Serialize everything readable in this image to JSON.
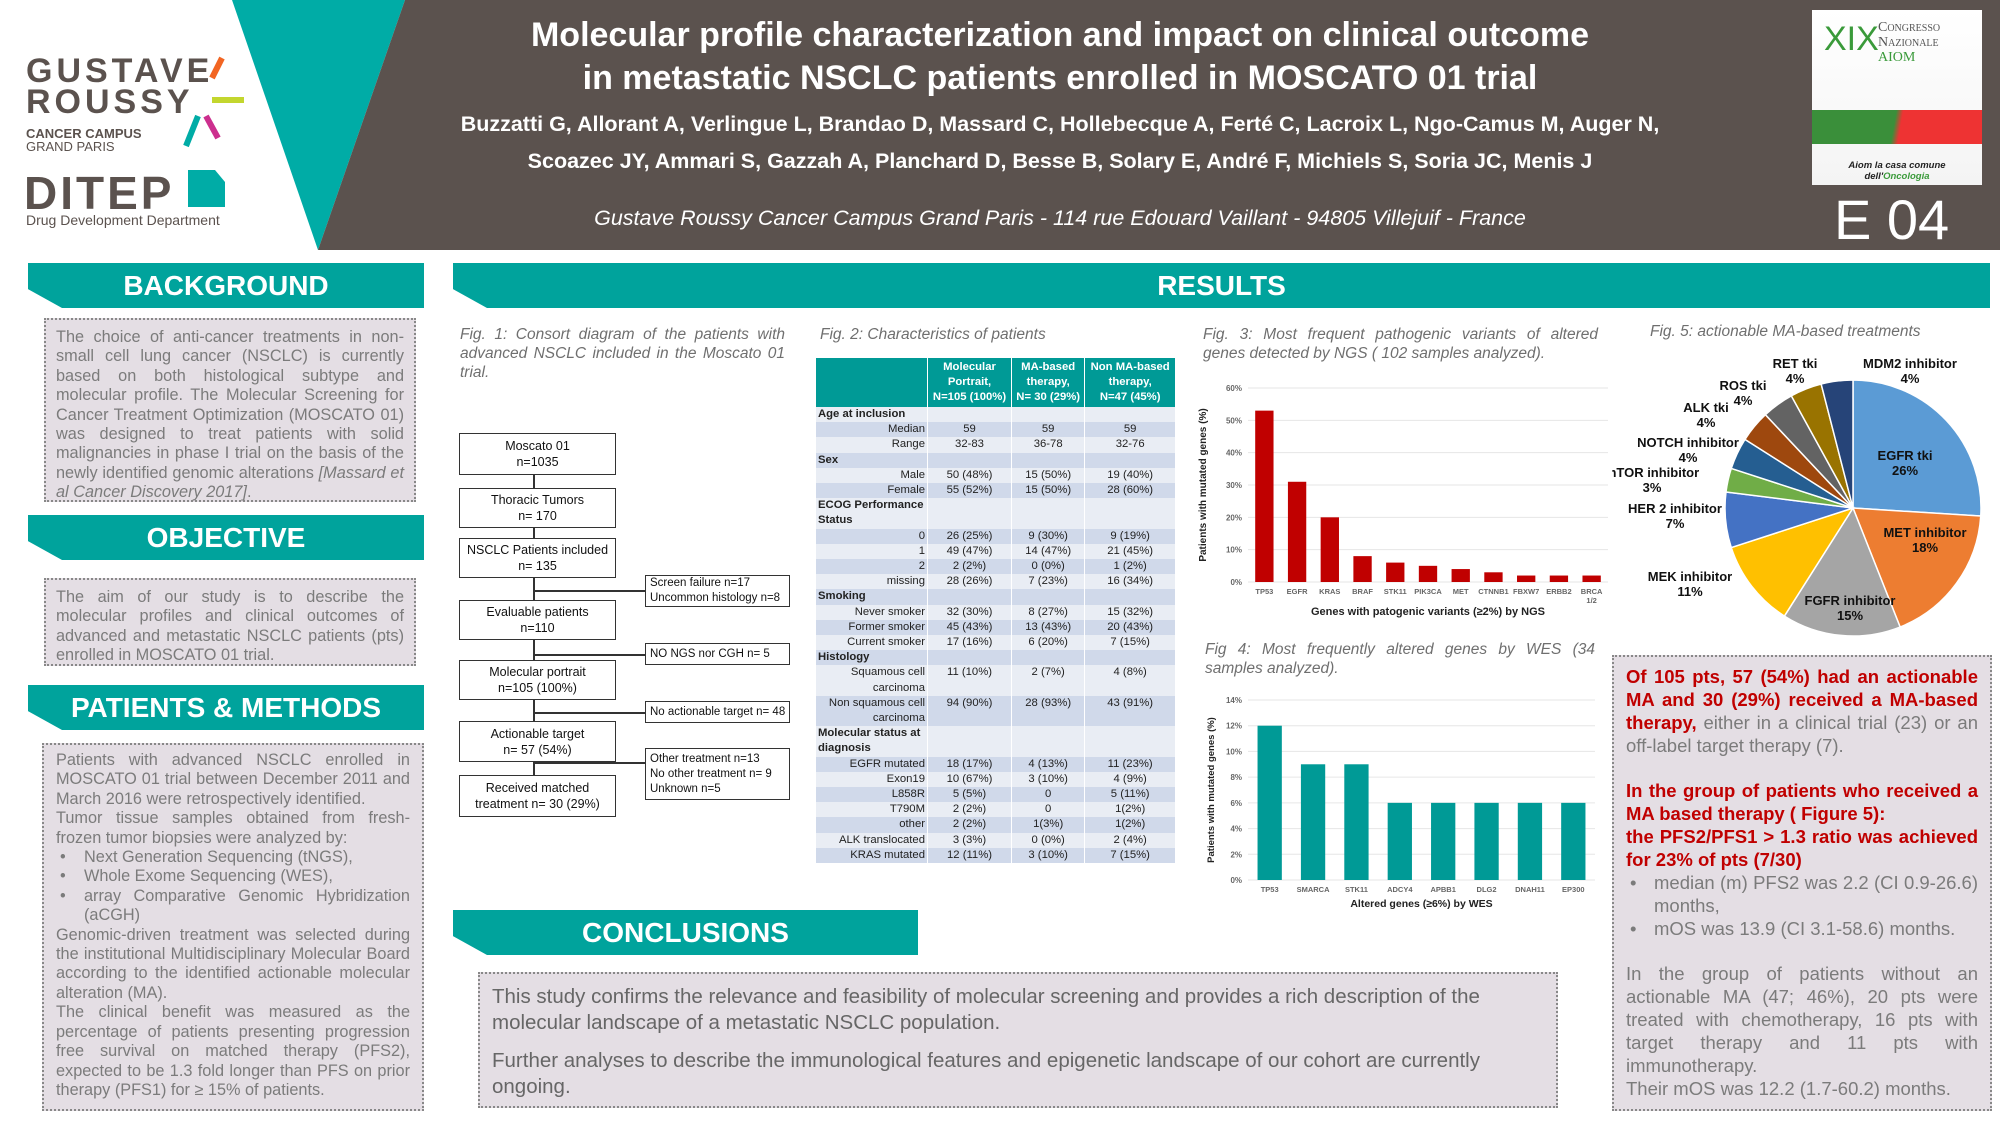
{
  "header": {
    "title_lines": [
      "Molecular profile characterization and impact on clinical outcome",
      "in metastatic NSCLC patients enrolled in MOSCATO 01 trial"
    ],
    "author_lines": [
      "Buzzatti G, Allorant A, Verlingue L, Brandao D,  Massard C,  Hollebecque A, Ferté C, Lacroix L, Ngo-Camus M, Auger N,",
      "Scoazec JY,  Ammari S, Gazzah A, Planchard D, Besse B, Solary E, André F, Michiels S, Soria JC, Menis J"
    ],
    "address": "Gustave Roussy  Cancer Campus Grand Paris - 114 rue Edouard Vaillant - 94805 Villejuif - France",
    "poster_id": "E 04",
    "colors": {
      "brown": "#5b524e",
      "teal": "#00a39c"
    }
  },
  "logos": {
    "gustave_roussy": {
      "line1": "GUSTAVE",
      "line2": "ROUSSY",
      "sub1": "CANCER CAMPUS",
      "sub2": "GRAND PARIS"
    },
    "ditep": {
      "name": "DITEP",
      "sub": "Drug Development Department"
    },
    "aiom": {
      "xix": "XIX",
      "congresso": "Congresso",
      "nazionale": "Nazionale",
      "aiom": "AIOM",
      "tag1": "Aiom la casa comune",
      "tag2a": "dell'",
      "tag2b": "Oncologia"
    }
  },
  "background": {
    "heading": "BACKGROUND",
    "text": "The choice of anti-cancer treatments in non-small cell lung cancer (NSCLC) is currently based on both histological subtype and molecular profile. The Molecular Screening for Cancer Treatment Optimization (MOSCATO 01) was designed to treat patients with solid malignancies in phase I trial on the basis of the newly identified genomic alterations ",
    "citation": "[Massard et al Cancer Discovery 2017]",
    "end": "."
  },
  "objective": {
    "heading": "OBJECTIVE",
    "text": "The aim of our study is to describe the molecular profiles and clinical outcomes of advanced and metastatic NSCLC patients (pts) enrolled in MOSCATO 01 trial."
  },
  "methods": {
    "heading": "PATIENTS & METHODS",
    "p1": "Patients with advanced NSCLC enrolled in MOSCATO 01 trial between December 2011 and March 2016 were retrospectively identified.",
    "p2": "Tumor tissue samples obtained from fresh-frozen tumor biopsies were analyzed by:",
    "bullets": [
      "Next Generation Sequencing (tNGS),",
      "Whole Exome Sequencing (WES),",
      "array Comparative Genomic Hybridization (aCGH)"
    ],
    "p3": "Genomic-driven treatment was selected during the institutional Multidisciplinary Molecular Board according to the identified actionable molecular alteration (MA).",
    "p4": "The clinical benefit was measured as the percentage of patients presenting progression free survival on matched therapy (PFS2), expected to be 1.3 fold longer than PFS on prior therapy (PFS1) for ≥ 15% of patients."
  },
  "results": {
    "heading": "RESULTS",
    "fig1": {
      "caption": "Fig. 1: Consort diagram of the patients with advanced NSCLC included in the Moscato 01 trial.",
      "main": [
        [
          "Moscato 01",
          "n=1035"
        ],
        [
          "Thoracic Tumors",
          "n= 170"
        ],
        [
          "NSCLC Patients included",
          "n= 135"
        ],
        [
          "Evaluable patients",
          "n=110"
        ],
        [
          "Molecular portrait",
          "n=105 (100%)"
        ],
        [
          "Actionable target",
          "n= 57 (54%)"
        ],
        [
          "Received matched",
          "treatment n= 30 (29%)"
        ]
      ],
      "side": [
        [
          "Screen failure n=17",
          "Uncommon histology n=8"
        ],
        [
          "NO NGS nor CGH n= 5"
        ],
        [
          "No actionable target n= 48"
        ],
        [
          "Other treatment n=13",
          "No other treatment n= 9",
          "Unknown n=5"
        ]
      ]
    },
    "fig2": {
      "caption": "Fig. 2: Characteristics of patients",
      "headers": [
        [
          "Molecular",
          "Portrait,",
          "N=105 (100%)"
        ],
        [
          "MA-based",
          "therapy,",
          "N= 30 (29%)"
        ],
        [
          "Non MA-based",
          "therapy,",
          "N=47 (45%)"
        ]
      ],
      "rows": [
        {
          "label": "Age at inclusion",
          "section": true,
          "v": [
            "",
            "",
            ""
          ]
        },
        {
          "label": "Median",
          "v": [
            "59",
            "59",
            "59"
          ]
        },
        {
          "label": "Range",
          "v": [
            "32-83",
            "36-78",
            "32-76"
          ]
        },
        {
          "label": "Sex",
          "section": true,
          "v": [
            "",
            "",
            ""
          ]
        },
        {
          "label": "Male",
          "v": [
            "50 (48%)",
            "15 (50%)",
            "19 (40%)"
          ]
        },
        {
          "label": "Female",
          "v": [
            "55 (52%)",
            "15 (50%)",
            "28 (60%)"
          ]
        },
        {
          "label": "ECOG Performance Status",
          "section": true,
          "v": [
            "",
            "",
            ""
          ]
        },
        {
          "label": "0",
          "v": [
            "26   (25%)",
            "9 (30%)",
            "9 (19%)"
          ]
        },
        {
          "label": "1",
          "v": [
            "49 (47%)",
            "14 (47%)",
            "21 (45%)"
          ]
        },
        {
          "label": "2",
          "v": [
            "2 (2%)",
            "0 (0%)",
            "1 (2%)"
          ]
        },
        {
          "label": "missing",
          "v": [
            "28 (26%)",
            "7 (23%)",
            "16 (34%)"
          ]
        },
        {
          "label": "Smoking",
          "section": true,
          "v": [
            "",
            "",
            ""
          ]
        },
        {
          "label": "Never smoker",
          "v": [
            "32 (30%)",
            "8 (27%)",
            "15 (32%)"
          ]
        },
        {
          "label": "Former smoker",
          "v": [
            "45 (43%)",
            "13 (43%)",
            "20 (43%)"
          ]
        },
        {
          "label": "Current smoker",
          "v": [
            "17 (16%)",
            "6 (20%)",
            "7 (15%)"
          ]
        },
        {
          "label": "Histology",
          "section": true,
          "v": [
            "",
            "",
            ""
          ]
        },
        {
          "label": "Squamous cell carcinoma",
          "v": [
            "11 (10%)",
            "2 (7%)",
            "4 (8%)"
          ]
        },
        {
          "label": "Non squamous cell carcinoma",
          "v": [
            "94 (90%)",
            "28 (93%)",
            "43 (91%)"
          ]
        },
        {
          "label": "Molecular status at diagnosis",
          "section": true,
          "v": [
            "",
            "",
            ""
          ]
        },
        {
          "label": "EGFR mutated",
          "v": [
            "18 (17%)",
            "4 (13%)",
            "11 (23%)"
          ]
        },
        {
          "label": "Exon19",
          "v": [
            "10 (67%)",
            "3 (10%)",
            "4 (9%)"
          ]
        },
        {
          "label": "L858R",
          "v": [
            "5 (5%)",
            "0",
            "5 (11%)"
          ]
        },
        {
          "label": "T790M",
          "v": [
            "2 (2%)",
            "0",
            "1(2%)"
          ]
        },
        {
          "label": "other",
          "v": [
            "2 (2%)",
            "1(3%)",
            "1(2%)"
          ]
        },
        {
          "label": "ALK translocated",
          "v": [
            "3 (3%)",
            "0 (0%)",
            "2 (4%)"
          ]
        },
        {
          "label": "KRAS mutated",
          "v": [
            "12 (11%)",
            "3 (10%)",
            "7 (15%)"
          ]
        }
      ]
    },
    "fig3": {
      "caption": "Fig. 3: Most frequent pathogenic variants of altered genes detected by NGS ( 102 samples analyzed)."
    },
    "fig4": {
      "caption": "Fig 4: Most frequently altered genes by WES (34 samples analyzed)."
    },
    "fig5": {
      "caption": "Fig. 5: actionable MA-based treatments"
    },
    "summary": {
      "p1_red": "Of 105 pts, 57 (54%) had an actionable MA and 30 (29%) received a MA-based therapy,",
      "p1_rest": " either in a clinical trial (23) or an off-label target therapy (7).",
      "p2_red1": "In the group of patients who received a MA based therapy ( Figure 5):",
      "p2_red2": "the PFS2/PFS1 > 1.3 ratio was achieved for 23% of pts (7/30)",
      "bullets": [
        "median (m) PFS2 was 2.2 (CI 0.9-26.6) months,",
        "mOS was 13.9 (CI 3.1-58.6) months."
      ],
      "p3": "In the group of patients without an actionable MA (47; 46%), 20 pts were treated with chemotherapy, 16 pts with target therapy and 11 pts with immunotherapy.",
      "p4": "Their mOS was 12.2 (1.7-60.2) months."
    }
  },
  "conclusions": {
    "heading": "CONCLUSIONS",
    "p1": "This study confirms the relevance and feasibility of molecular screening and provides a rich description of the molecular landscape of a metastatic NSCLC population.",
    "p2": "Further analyses to describe the immunological features and epigenetic landscape of our cohort are currently ongoing."
  },
  "chart_data": [
    {
      "type": "bar",
      "categories": [
        "TP53",
        "EGFR",
        "KRAS",
        "BRAF",
        "STK11",
        "PIK3CA",
        "MET",
        "CTNNB1",
        "FBXW7",
        "ERBB2",
        "BRCA 1/2"
      ],
      "values": [
        53,
        31,
        20,
        8,
        6,
        5,
        4,
        3,
        2,
        2,
        2
      ],
      "xlabel": "Genes with patogenic variants (≥2%) by NGS",
      "ylabel": "Patients with mutated genes (%)",
      "ylim": [
        0,
        60
      ],
      "yticks": [
        "0%",
        "10%",
        "20%",
        "30%",
        "40%",
        "50%",
        "60%"
      ],
      "color": "#c00000",
      "grid": true
    },
    {
      "type": "bar",
      "categories": [
        "TP53",
        "SMARCA",
        "STK11",
        "ADCY4",
        "APBB1",
        "DLG2",
        "DNAH11",
        "EP300"
      ],
      "values": [
        12,
        9,
        9,
        6,
        6,
        6,
        6,
        6
      ],
      "xlabel": "Altered genes (≥6%) by WES",
      "ylabel": "Patients with mutated genes (%)",
      "ylim": [
        0,
        14
      ],
      "yticks": [
        "0%",
        "2%",
        "4%",
        "6%",
        "8%",
        "10%",
        "12%",
        "14%"
      ],
      "color": "#009a96",
      "grid": true
    },
    {
      "type": "pie",
      "slices": [
        {
          "label": "EGFR tki",
          "value": 26,
          "text": "26%",
          "color": "#5b9bd5"
        },
        {
          "label": "MET inhibitor",
          "value": 18,
          "text": "18%",
          "color": "#ed7d31"
        },
        {
          "label": "FGFR  inhibitor",
          "value": 15,
          "text": "15%",
          "color": "#a5a5a5"
        },
        {
          "label": "MEK inhibitor",
          "value": 11,
          "text": "11%",
          "color": "#ffc000"
        },
        {
          "label": "HER  2 inhibitor",
          "value": 7,
          "text": "7%",
          "color": "#4472c4"
        },
        {
          "label": "mTOR inhibitor",
          "value": 3,
          "text": "3%",
          "color": "#70ad47"
        },
        {
          "label": "NOTCH inhibitor",
          "value": 4,
          "text": "4%",
          "color": "#255e91"
        },
        {
          "label": "ALK tki",
          "value": 4,
          "text": "4%",
          "color": "#9e480e"
        },
        {
          "label": "ROS  tki",
          "value": 4,
          "text": "4%",
          "color": "#636363"
        },
        {
          "label": "RET  tki",
          "value": 4,
          "text": "4%",
          "color": "#997300"
        },
        {
          "label": "MDM2 inhibitor",
          "value": 4,
          "text": "4%",
          "color": "#264478"
        }
      ]
    }
  ]
}
